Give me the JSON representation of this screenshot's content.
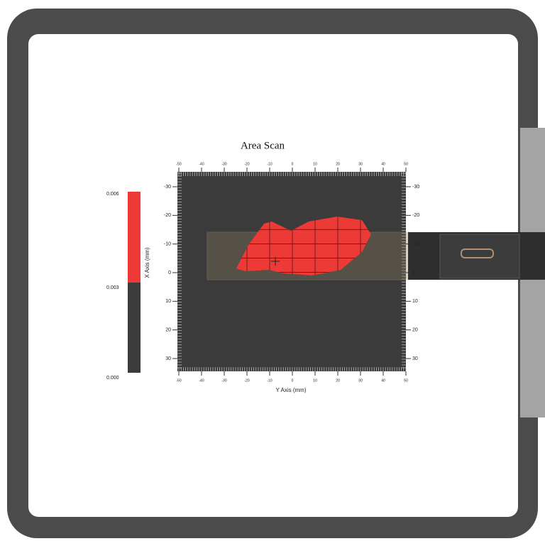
{
  "title": "Area Scan",
  "x_axis_label": "Y Axis (mm)",
  "y_axis_label": "X Axis (mm)",
  "horizontal_ticks": [
    "-50",
    "-40",
    "-30",
    "-20",
    "-10",
    "0",
    "10",
    "20",
    "30",
    "40",
    "50"
  ],
  "vertical_ticks": [
    "-30",
    "-20",
    "-10",
    "0",
    "10",
    "20",
    "30"
  ],
  "colorbar_labels": [
    "0.006",
    "0.003",
    "0.000"
  ]
}
